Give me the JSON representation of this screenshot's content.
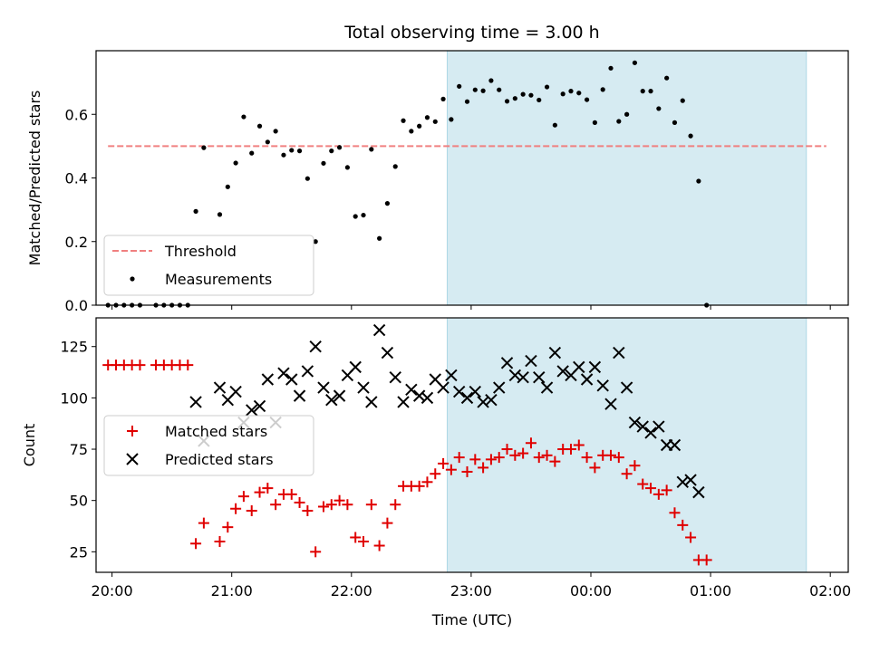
{
  "chart_data": [
    {
      "type": "scatter",
      "title": "Total observing time = 3.00 h",
      "ylabel": "Matched/Predicted stars",
      "xlabel": "",
      "xlim": [
        "19:52",
        "02:09"
      ],
      "ylim": [
        0,
        0.8
      ],
      "yticks": [
        0.0,
        0.2,
        0.4,
        0.6
      ],
      "yticklabels": [
        "0.0",
        "0.2",
        "0.4",
        "0.6"
      ],
      "grid": false,
      "legend_placement": "lower-left",
      "shaded_span": {
        "x": [
          "22:48",
          "01:48"
        ],
        "color": "#add8e6"
      },
      "threshold": {
        "name": "Threshold",
        "value": 0.5,
        "x": [
          "19:58",
          "01:58"
        ],
        "color": "#f08080",
        "style": "dashed"
      },
      "series": [
        {
          "name": "Measurements",
          "color": "#000000",
          "marker": "dot",
          "points": [
            [
              "19:58",
              0.0
            ],
            [
              "20:02",
              0.0
            ],
            [
              "20:06",
              0.0
            ],
            [
              "20:10",
              0.0
            ],
            [
              "20:14",
              0.0
            ],
            [
              "20:22",
              0.0
            ],
            [
              "20:26",
              0.0
            ],
            [
              "20:30",
              0.0
            ],
            [
              "20:34",
              0.0
            ],
            [
              "20:38",
              0.0
            ],
            [
              "20:42",
              0.295
            ],
            [
              "20:46",
              0.495
            ],
            [
              "20:54",
              0.285
            ],
            [
              "20:58",
              0.372
            ],
            [
              "21:02",
              0.447
            ],
            [
              "21:06",
              0.592
            ],
            [
              "21:10",
              0.478
            ],
            [
              "21:14",
              0.563
            ],
            [
              "21:18",
              0.513
            ],
            [
              "21:22",
              0.547
            ],
            [
              "21:26",
              0.472
            ],
            [
              "21:30",
              0.487
            ],
            [
              "21:34",
              0.485
            ],
            [
              "21:38",
              0.398
            ],
            [
              "21:42",
              0.2
            ],
            [
              "21:46",
              0.446
            ],
            [
              "21:50",
              0.485
            ],
            [
              "21:54",
              0.496
            ],
            [
              "21:58",
              0.433
            ],
            [
              "22:02",
              0.279
            ],
            [
              "22:06",
              0.283
            ],
            [
              "22:10",
              0.49
            ],
            [
              "22:14",
              0.21
            ],
            [
              "22:18",
              0.32
            ],
            [
              "22:22",
              0.436
            ],
            [
              "22:26",
              0.58
            ],
            [
              "22:30",
              0.547
            ],
            [
              "22:34",
              0.563
            ],
            [
              "22:38",
              0.59
            ],
            [
              "22:42",
              0.577
            ],
            [
              "22:46",
              0.648
            ],
            [
              "22:50",
              0.584
            ],
            [
              "22:54",
              0.688
            ],
            [
              "22:58",
              0.64
            ],
            [
              "23:02",
              0.677
            ],
            [
              "23:06",
              0.674
            ],
            [
              "23:10",
              0.706
            ],
            [
              "23:14",
              0.677
            ],
            [
              "23:18",
              0.641
            ],
            [
              "23:22",
              0.65
            ],
            [
              "23:26",
              0.663
            ],
            [
              "23:30",
              0.66
            ],
            [
              "23:34",
              0.645
            ],
            [
              "23:38",
              0.686
            ],
            [
              "23:42",
              0.566
            ],
            [
              "23:46",
              0.664
            ],
            [
              "23:50",
              0.673
            ],
            [
              "23:54",
              0.667
            ],
            [
              "23:58",
              0.646
            ],
            [
              "00:02",
              0.574
            ],
            [
              "00:06",
              0.678
            ],
            [
              "00:10",
              0.745
            ],
            [
              "00:14",
              0.578
            ],
            [
              "00:18",
              0.6
            ],
            [
              "00:22",
              0.762
            ],
            [
              "00:26",
              0.673
            ],
            [
              "00:30",
              0.673
            ],
            [
              "00:34",
              0.618
            ],
            [
              "00:38",
              0.714
            ],
            [
              "00:42",
              0.574
            ],
            [
              "00:46",
              0.643
            ],
            [
              "00:50",
              0.532
            ],
            [
              "00:54",
              0.39
            ],
            [
              "00:58",
              0.0
            ]
          ]
        }
      ]
    },
    {
      "type": "scatter",
      "title": "",
      "ylabel": "Count",
      "xlabel": "Time (UTC)",
      "xlim": [
        "19:52",
        "02:09"
      ],
      "ylim": [
        15,
        139
      ],
      "yticks": [
        25,
        50,
        75,
        100,
        125
      ],
      "yticklabels": [
        "25",
        "50",
        "75",
        "100",
        "125"
      ],
      "xticks": [
        "20:00",
        "21:00",
        "22:00",
        "23:00",
        "00:00",
        "01:00",
        "02:00"
      ],
      "grid": false,
      "legend_placement": "center-left",
      "shaded_span": {
        "x": [
          "22:48",
          "01:48"
        ],
        "color": "#add8e6"
      },
      "series": [
        {
          "name": "Matched stars",
          "color": "#e00000",
          "marker": "plus",
          "points": [
            [
              "19:58",
              116
            ],
            [
              "20:02",
              116
            ],
            [
              "20:06",
              116
            ],
            [
              "20:10",
              116
            ],
            [
              "20:14",
              116
            ],
            [
              "20:22",
              116
            ],
            [
              "20:26",
              116
            ],
            [
              "20:30",
              116
            ],
            [
              "20:34",
              116
            ],
            [
              "20:38",
              116
            ],
            [
              "20:42",
              29
            ],
            [
              "20:46",
              39
            ],
            [
              "20:54",
              30
            ],
            [
              "20:58",
              37
            ],
            [
              "21:02",
              46
            ],
            [
              "21:06",
              52
            ],
            [
              "21:10",
              45
            ],
            [
              "21:14",
              54
            ],
            [
              "21:18",
              56
            ],
            [
              "21:22",
              48
            ],
            [
              "21:26",
              53
            ],
            [
              "21:30",
              53
            ],
            [
              "21:34",
              49
            ],
            [
              "21:38",
              45
            ],
            [
              "21:42",
              25
            ],
            [
              "21:46",
              47
            ],
            [
              "21:50",
              48
            ],
            [
              "21:54",
              50
            ],
            [
              "21:58",
              48
            ],
            [
              "22:02",
              32
            ],
            [
              "22:06",
              30
            ],
            [
              "22:10",
              48
            ],
            [
              "22:14",
              28
            ],
            [
              "22:18",
              39
            ],
            [
              "22:22",
              48
            ],
            [
              "22:26",
              57
            ],
            [
              "22:30",
              57
            ],
            [
              "22:34",
              57
            ],
            [
              "22:38",
              59
            ],
            [
              "22:42",
              63
            ],
            [
              "22:46",
              68
            ],
            [
              "22:50",
              65
            ],
            [
              "22:54",
              71
            ],
            [
              "22:58",
              64
            ],
            [
              "23:02",
              70
            ],
            [
              "23:06",
              66
            ],
            [
              "23:10",
              70
            ],
            [
              "23:14",
              71
            ],
            [
              "23:18",
              75
            ],
            [
              "23:22",
              72
            ],
            [
              "23:26",
              73
            ],
            [
              "23:30",
              78
            ],
            [
              "23:34",
              71
            ],
            [
              "23:38",
              72
            ],
            [
              "23:42",
              69
            ],
            [
              "23:46",
              75
            ],
            [
              "23:50",
              75
            ],
            [
              "23:54",
              77
            ],
            [
              "23:58",
              71
            ],
            [
              "00:02",
              66
            ],
            [
              "00:06",
              72
            ],
            [
              "00:10",
              72
            ],
            [
              "00:14",
              71
            ],
            [
              "00:18",
              63
            ],
            [
              "00:22",
              67
            ],
            [
              "00:26",
              58
            ],
            [
              "00:30",
              56
            ],
            [
              "00:34",
              53
            ],
            [
              "00:38",
              55
            ],
            [
              "00:42",
              44
            ],
            [
              "00:46",
              38
            ],
            [
              "00:50",
              32
            ],
            [
              "00:54",
              21
            ],
            [
              "00:58",
              21
            ]
          ]
        },
        {
          "name": "Predicted stars",
          "color": "#000000",
          "marker": "x",
          "points": [
            [
              "20:42",
              98
            ],
            [
              "20:46",
              79
            ],
            [
              "20:54",
              105
            ],
            [
              "20:58",
              99
            ],
            [
              "21:02",
              103
            ],
            [
              "21:06",
              88
            ],
            [
              "21:10",
              94
            ],
            [
              "21:14",
              96
            ],
            [
              "21:18",
              109
            ],
            [
              "21:22",
              88
            ],
            [
              "21:26",
              112
            ],
            [
              "21:30",
              109
            ],
            [
              "21:34",
              101
            ],
            [
              "21:38",
              113
            ],
            [
              "21:42",
              125
            ],
            [
              "21:46",
              105
            ],
            [
              "21:50",
              99
            ],
            [
              "21:54",
              101
            ],
            [
              "21:58",
              111
            ],
            [
              "22:02",
              115
            ],
            [
              "22:06",
              105
            ],
            [
              "22:10",
              98
            ],
            [
              "22:14",
              133
            ],
            [
              "22:18",
              122
            ],
            [
              "22:22",
              110
            ],
            [
              "22:26",
              98
            ],
            [
              "22:30",
              104
            ],
            [
              "22:34",
              101
            ],
            [
              "22:38",
              100
            ],
            [
              "22:42",
              109
            ],
            [
              "22:46",
              105
            ],
            [
              "22:50",
              111
            ],
            [
              "22:54",
              103
            ],
            [
              "22:58",
              100
            ],
            [
              "23:02",
              103
            ],
            [
              "23:06",
              98
            ],
            [
              "23:10",
              99
            ],
            [
              "23:14",
              105
            ],
            [
              "23:18",
              117
            ],
            [
              "23:22",
              111
            ],
            [
              "23:26",
              110
            ],
            [
              "23:30",
              118
            ],
            [
              "23:34",
              110
            ],
            [
              "23:38",
              105
            ],
            [
              "23:42",
              122
            ],
            [
              "23:46",
              113
            ],
            [
              "23:50",
              111
            ],
            [
              "23:54",
              115
            ],
            [
              "23:58",
              109
            ],
            [
              "00:02",
              115
            ],
            [
              "00:06",
              106
            ],
            [
              "00:10",
              97
            ],
            [
              "00:14",
              122
            ],
            [
              "00:18",
              105
            ],
            [
              "00:22",
              88
            ],
            [
              "00:26",
              86
            ],
            [
              "00:30",
              83
            ],
            [
              "00:34",
              86
            ],
            [
              "00:38",
              77
            ],
            [
              "00:42",
              77
            ],
            [
              "00:46",
              59
            ],
            [
              "00:50",
              60
            ],
            [
              "00:54",
              54
            ]
          ]
        }
      ]
    }
  ]
}
